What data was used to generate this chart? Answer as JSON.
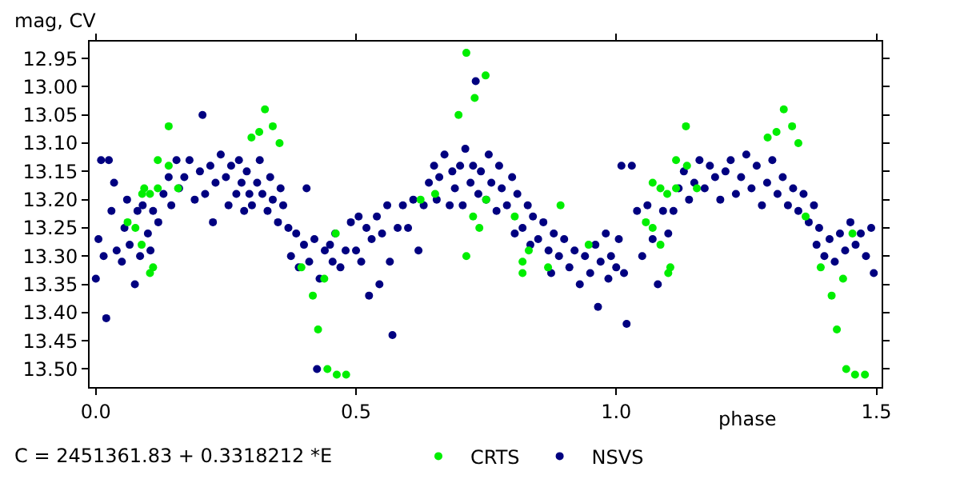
{
  "chart_data": {
    "type": "scatter",
    "xlabel": "phase",
    "ylabel": "mag, CV",
    "annotations": [
      "C = 2451361.83 + 0.3318212 *E"
    ],
    "xlim": [
      -0.012,
      1.51
    ],
    "xticks": [
      {
        "value": 0,
        "label": "0.0"
      },
      0.5,
      {
        "value": 1,
        "label": "1.0"
      },
      1.5
    ],
    "ylim": [
      13.532,
      12.92
    ],
    "yticks": [
      12.95,
      {
        "value": 13.0,
        "label": "13.00"
      },
      13.05,
      {
        "value": 13.1,
        "label": "13.10"
      },
      13.15,
      {
        "value": 13.2,
        "label": "13.20"
      },
      13.25,
      {
        "value": 13.3,
        "label": "13.30"
      },
      13.35,
      {
        "value": 13.4,
        "label": "13.40"
      },
      13.45,
      {
        "value": 13.5,
        "label": "13.50"
      }
    ],
    "legend": "bottom",
    "marker": "circle",
    "series": [
      {
        "name": "NSVS",
        "color": "#000080",
        "x": [
          0.0,
          0.005,
          0.01,
          0.015,
          0.02,
          0.025,
          0.03,
          0.035,
          0.04,
          0.05,
          0.055,
          0.06,
          0.065,
          0.075,
          0.08,
          0.085,
          0.09,
          0.1,
          0.105,
          0.11,
          0.12,
          0.13,
          0.14,
          0.145,
          0.155,
          0.16,
          0.17,
          0.18,
          0.19,
          0.2,
          0.205,
          0.21,
          0.22,
          0.225,
          0.23,
          0.24,
          0.25,
          0.255,
          0.26,
          0.27,
          0.275,
          0.28,
          0.285,
          0.29,
          0.295,
          0.3,
          0.31,
          0.315,
          0.32,
          0.33,
          0.335,
          0.34,
          0.35,
          0.355,
          0.36,
          0.37,
          0.375,
          0.385,
          0.39,
          0.4,
          0.405,
          0.41,
          0.42,
          0.425,
          0.43,
          0.44,
          0.45,
          0.455,
          0.46,
          0.47,
          0.48,
          0.49,
          0.5,
          0.505,
          0.51,
          0.52,
          0.525,
          0.53,
          0.54,
          0.545,
          0.55,
          0.56,
          0.565,
          0.57,
          0.58,
          0.59,
          0.6,
          0.61,
          0.62,
          0.63,
          0.64,
          0.65,
          0.655,
          0.66,
          0.67,
          0.68,
          0.685,
          0.69,
          0.7,
          0.705,
          0.71,
          0.72,
          0.725,
          0.73,
          0.735,
          0.74,
          0.75,
          0.755,
          0.76,
          0.77,
          0.775,
          0.78,
          0.79,
          0.8,
          0.805,
          0.81,
          0.82,
          0.83,
          0.835,
          0.84,
          0.85,
          0.86,
          0.87,
          0.875,
          0.88,
          0.89,
          0.9,
          0.91,
          0.92,
          0.93,
          0.94,
          0.95,
          0.96,
          0.965,
          0.97,
          0.98,
          0.985,
          0.99,
          1.0,
          1.005,
          1.01,
          1.015,
          1.02,
          1.03,
          1.04,
          1.05,
          1.06,
          1.07,
          1.08,
          1.09,
          1.1,
          1.11,
          1.12,
          1.13,
          1.14,
          1.15,
          1.16,
          1.17,
          1.18,
          1.19,
          1.2,
          1.21,
          1.22,
          1.23,
          1.24,
          1.25,
          1.26,
          1.27,
          1.28,
          1.29,
          1.3,
          1.31,
          1.32,
          1.33,
          1.34,
          1.35,
          1.36,
          1.37,
          1.38,
          1.385,
          1.39,
          1.4,
          1.41,
          1.42,
          1.43,
          1.44,
          1.45,
          1.46,
          1.47,
          1.48,
          1.49,
          1.495
        ],
        "values": [
          13.34,
          13.27,
          13.13,
          13.3,
          13.41,
          13.13,
          13.22,
          13.17,
          13.29,
          13.31,
          13.25,
          13.2,
          13.28,
          13.35,
          13.22,
          13.3,
          13.21,
          13.26,
          13.29,
          13.22,
          13.24,
          13.19,
          13.16,
          13.21,
          13.13,
          13.18,
          13.16,
          13.13,
          13.2,
          13.15,
          13.05,
          13.19,
          13.14,
          13.24,
          13.17,
          13.12,
          13.16,
          13.21,
          13.14,
          13.19,
          13.13,
          13.17,
          13.22,
          13.15,
          13.19,
          13.21,
          13.17,
          13.13,
          13.19,
          13.22,
          13.16,
          13.2,
          13.24,
          13.18,
          13.21,
          13.25,
          13.3,
          13.26,
          13.32,
          13.28,
          13.18,
          13.31,
          13.27,
          13.5,
          13.34,
          13.29,
          13.28,
          13.31,
          13.26,
          13.32,
          13.29,
          13.24,
          13.29,
          13.23,
          13.31,
          13.25,
          13.37,
          13.27,
          13.23,
          13.35,
          13.26,
          13.21,
          13.31,
          13.44,
          13.25,
          13.21,
          13.25,
          13.2,
          13.29,
          13.21,
          13.17,
          13.14,
          13.2,
          13.16,
          13.12,
          13.21,
          13.15,
          13.18,
          13.14,
          13.21,
          13.11,
          13.17,
          13.14,
          12.99,
          13.19,
          13.15,
          13.2,
          13.12,
          13.17,
          13.22,
          13.14,
          13.18,
          13.21,
          13.16,
          13.26,
          13.19,
          13.25,
          13.21,
          13.28,
          13.23,
          13.27,
          13.24,
          13.29,
          13.33,
          13.26,
          13.3,
          13.27,
          13.32,
          13.29,
          13.35,
          13.3,
          13.33,
          13.28,
          13.39,
          13.31,
          13.26,
          13.34,
          13.3,
          13.32,
          13.27,
          13.14,
          13.33,
          13.42,
          13.14,
          13.22,
          13.3,
          13.21,
          13.27,
          13.35,
          13.22,
          13.26,
          13.22,
          13.18,
          13.15,
          13.2,
          13.17,
          13.13,
          13.18,
          13.14,
          13.16,
          13.2,
          13.15,
          13.13,
          13.19,
          13.16,
          13.12,
          13.18,
          13.14,
          13.21,
          13.17,
          13.13,
          13.19,
          13.16,
          13.21,
          13.18,
          13.22,
          13.19,
          13.24,
          13.21,
          13.28,
          13.25,
          13.3,
          13.27,
          13.31,
          13.26,
          13.29,
          13.24,
          13.28,
          13.26,
          13.3,
          13.25,
          13.33
        ]
      },
      {
        "name": "CRTS",
        "color": "#00ee00",
        "x": [
          0.061,
          0.076,
          0.089,
          0.093,
          0.104,
          0.088,
          0.104,
          0.11,
          0.119,
          0.119,
          0.14,
          0.14,
          0.158,
          0.299,
          0.314,
          0.325,
          0.34,
          0.353,
          0.395,
          0.417,
          0.427,
          0.439,
          0.445,
          0.463,
          0.481,
          0.461,
          0.624,
          0.652,
          0.697,
          0.712,
          0.728,
          0.712,
          0.725,
          0.749,
          0.75,
          0.737,
          0.805,
          0.832,
          0.82,
          0.82,
          0.869,
          0.893,
          0.947,
          1.07,
          1.085,
          1.098,
          1.057,
          1.07,
          1.085,
          1.1,
          1.104,
          1.115,
          1.115,
          1.134,
          1.136,
          1.155,
          1.291,
          1.308,
          1.322,
          1.338,
          1.35,
          1.364,
          1.393,
          1.414,
          1.424,
          1.436,
          1.442,
          1.459,
          1.478,
          1.454
        ],
        "values": [
          13.24,
          13.25,
          13.19,
          13.18,
          13.19,
          13.28,
          13.33,
          13.32,
          13.13,
          13.18,
          13.07,
          13.14,
          13.18,
          13.09,
          13.08,
          13.04,
          13.07,
          13.1,
          13.32,
          13.37,
          13.43,
          13.34,
          13.5,
          13.51,
          13.51,
          13.26,
          13.2,
          13.19,
          13.05,
          12.94,
          13.02,
          13.3,
          13.23,
          12.98,
          13.2,
          13.25,
          13.23,
          13.29,
          13.31,
          13.33,
          13.32,
          13.21,
          13.28,
          13.17,
          13.18,
          13.19,
          13.24,
          13.25,
          13.28,
          13.33,
          13.32,
          13.13,
          13.18,
          13.07,
          13.14,
          13.18,
          13.09,
          13.08,
          13.04,
          13.07,
          13.1,
          13.23,
          13.32,
          13.37,
          13.43,
          13.34,
          13.5,
          13.51,
          13.51,
          13.26
        ]
      }
    ]
  }
}
